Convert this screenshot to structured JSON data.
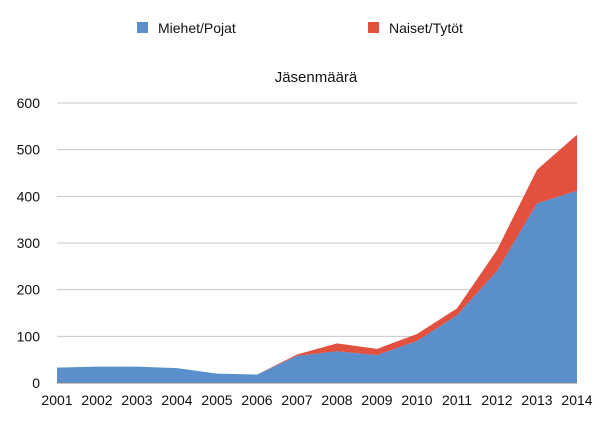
{
  "chart_data": {
    "type": "area",
    "stacked": true,
    "title": "Jäsenmäärä",
    "xlabel": "",
    "ylabel": "",
    "categories": [
      "2001",
      "2002",
      "2003",
      "2004",
      "2005",
      "2006",
      "2007",
      "2008",
      "2009",
      "2010",
      "2011",
      "2012",
      "2013",
      "2014"
    ],
    "ylim": [
      0,
      600
    ],
    "yticks": [
      0,
      100,
      200,
      300,
      400,
      500,
      600
    ],
    "grid": true,
    "legend_position": "top",
    "series": [
      {
        "name": "Miehet/Pojat",
        "color": "#5B8FCB",
        "values": [
          33,
          35,
          35,
          32,
          20,
          18,
          58,
          68,
          60,
          90,
          145,
          240,
          385,
          412
        ]
      },
      {
        "name": "Naiset/Tytöt",
        "color": "#E2503F",
        "values": [
          0,
          0,
          0,
          0,
          0,
          0,
          3,
          17,
          13,
          15,
          15,
          45,
          72,
          120
        ]
      }
    ]
  }
}
